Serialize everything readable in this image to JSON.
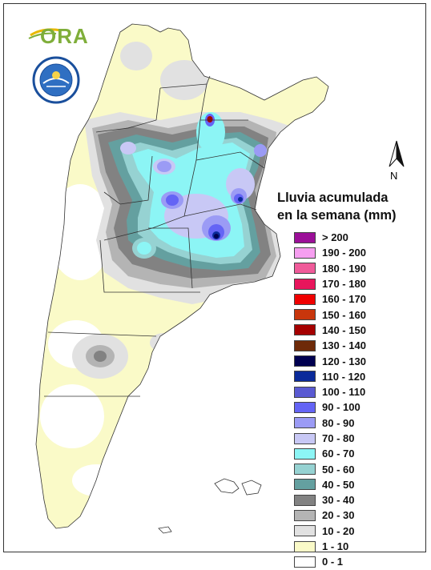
{
  "logo": {
    "text": "ORA"
  },
  "seal": {
    "name": "smn-seal-icon",
    "ring_text": "SERVICIO METEOROLOGICO NACIONAL",
    "base_text": "ARGENTINA"
  },
  "north_arrow": {
    "label": "N"
  },
  "legend": {
    "title_line1": "Lluvia acumulada",
    "title_line2": "en la semana (mm)",
    "items": [
      {
        "label": "> 200",
        "color": "#9b0f98"
      },
      {
        "label": "190 - 200",
        "color": "#f69ef0"
      },
      {
        "label": "180 - 190",
        "color": "#f05b9a"
      },
      {
        "label": "170 - 180",
        "color": "#e8155c"
      },
      {
        "label": "160 - 170",
        "color": "#f00000"
      },
      {
        "label": "150 - 160",
        "color": "#c8360c"
      },
      {
        "label": "140 - 150",
        "color": "#a50000"
      },
      {
        "label": "130 - 140",
        "color": "#6e2a08"
      },
      {
        "label": "120 - 130",
        "color": "#000050"
      },
      {
        "label": "110 - 120",
        "color": "#0a2a9a"
      },
      {
        "label": "100 - 110",
        "color": "#5a5ad2"
      },
      {
        "label": "90 - 100",
        "color": "#6464f5"
      },
      {
        "label": "80 - 90",
        "color": "#9b9bf5"
      },
      {
        "label": "70 - 80",
        "color": "#c8c8f5"
      },
      {
        "label": "60 - 70",
        "color": "#8cf5f5"
      },
      {
        "label": "50 - 60",
        "color": "#96d2d2"
      },
      {
        "label": "40 - 50",
        "color": "#64a0a0"
      },
      {
        "label": "30 - 40",
        "color": "#828282"
      },
      {
        "label": "20 - 30",
        "color": "#b4b4b4"
      },
      {
        "label": "10 - 20",
        "color": "#e1e1e1"
      },
      {
        "label": "1 - 10",
        "color": "#fafac8"
      },
      {
        "label": "0 - 1",
        "color": "#ffffff"
      }
    ]
  }
}
